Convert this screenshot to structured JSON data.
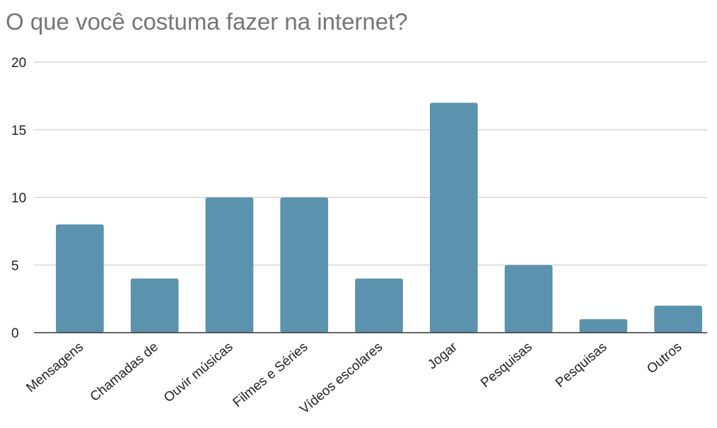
{
  "chart_data": {
    "type": "bar",
    "title": "O que você costuma fazer na internet?",
    "xlabel": "",
    "ylabel": "",
    "categories": [
      "Mensagens",
      "Chamadas de",
      "Ouvir músicas",
      "Filmes e Séries",
      "Vídeos escolares",
      "Jogar",
      "Pesquisas",
      "Pesquisas",
      "Outros"
    ],
    "values": [
      8,
      4,
      10,
      10,
      4,
      17,
      5,
      1,
      2
    ],
    "ylim": [
      0,
      20
    ],
    "yticks": [
      0,
      5,
      10,
      15,
      20
    ],
    "grid": true,
    "legend": "none",
    "bar_color": "#5b92ae",
    "grid_color": "#d0d0d0",
    "axis_color": "#333333"
  }
}
